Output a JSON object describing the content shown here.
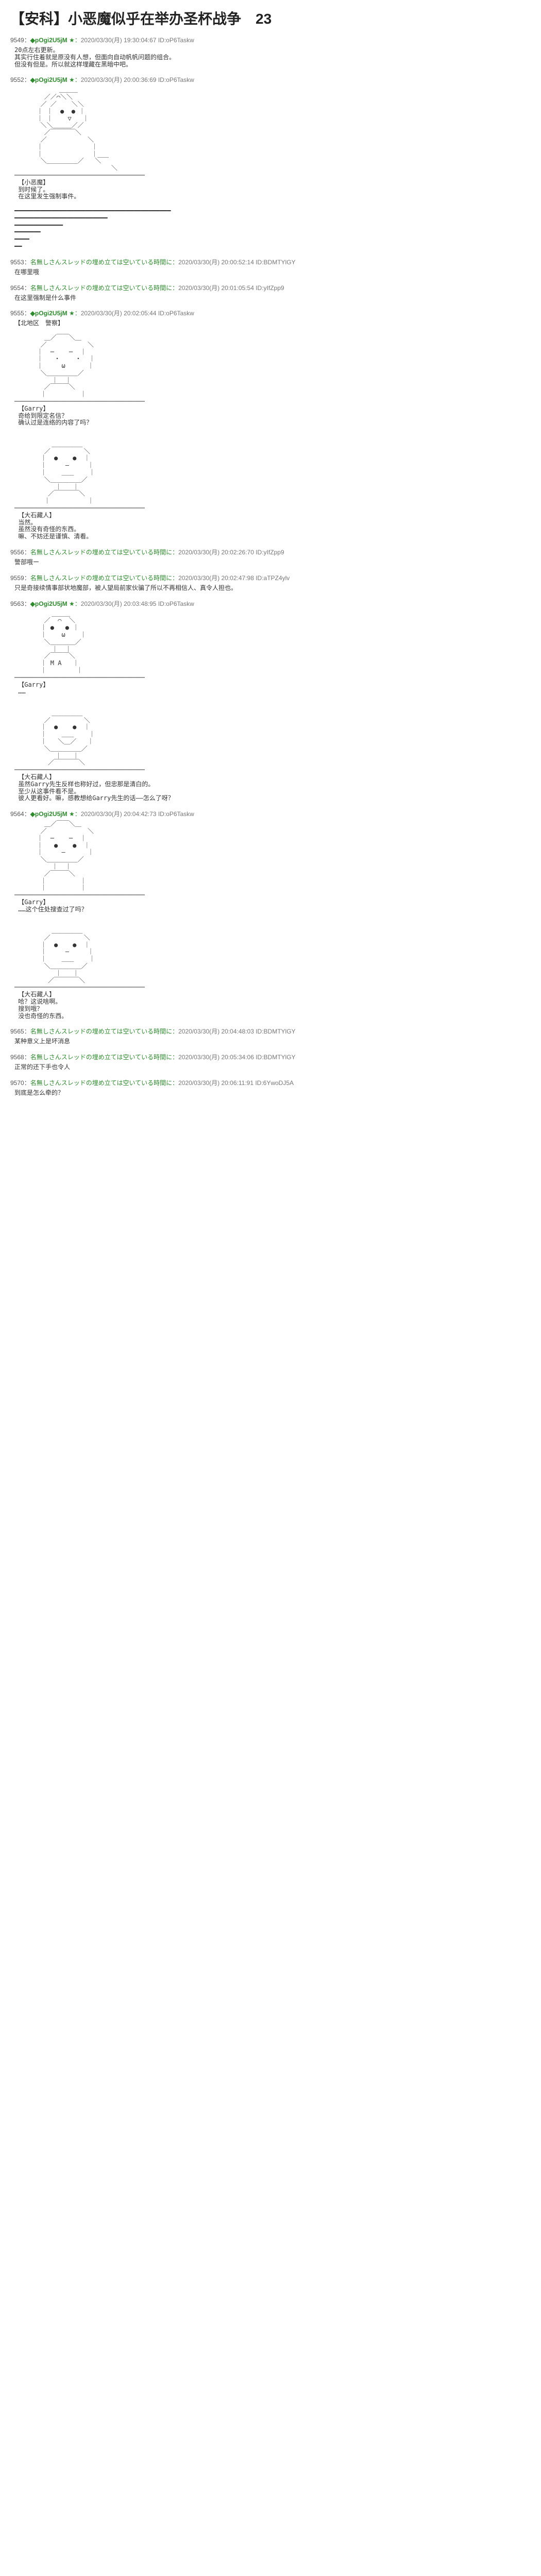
{
  "title": "【安科】小恶魔似乎在举办圣杯战争　23",
  "posts": [
    {
      "num": "9549",
      "trip": "◆pOgi2U5jM",
      "star": "★",
      "date": "2020/03/30(月) 19:30:04:67",
      "id": "ID:oP6Taskw",
      "body": "20点左右更新。\n其实行住着就是原没有人想，但面向自动帆帆问题的组合。\n但没有但是。所以就这样埋藏在黑暗中吧。"
    },
    {
      "num": "9552",
      "trip": "◆pOgi2U5jM",
      "star": "★",
      "date": "2020/03/30(月) 20:00:36:69",
      "id": "ID:oP6Taskw",
      "body": "            ＿＿＿\n        ／／⌒＼＼\n       ／ ／    ＼＼\n      ｜ ｜  ●  ● ｜\n      ｜ ｜    ▽   ｜\n       ＼＼＿＿＿／／          \n        ／￣￣￣￣＼\n       ／           ＼\n      ｜             ｜\n      ｜             ｜___\n       ＼＿＿＿＿＿／   ＼\n                          ＼\n───────────────────────────────────\n 【小恶魔】\n 到时候了。\n 在这里发生强制事件。\n\n━━━━━━━━━━━━━━━━━━━━━━━━━━━━━━━━━━━━━━━━━━\n━━━━━━━━━━━━━━━━━━━━━━━━━\n━━━━━━━━━━━━━\n━━━━━━━\n━━━━\n━━"
    },
    {
      "num": "9553",
      "anon": "名無しさんスレッドの埋め立ては空いている時間に",
      "date": "2020/03/30(月) 20:00:52:14",
      "id": "ID:BDMTYlGY",
      "body": "在哪里哦"
    },
    {
      "num": "9554",
      "anon": "名無しさんスレッドの埋め立ては空いている時間に",
      "date": "2020/03/30(月) 20:01:05:54",
      "id": "ID:yIfZpp9",
      "body": "在这里强制是什么事件"
    },
    {
      "num": "9555",
      "trip": "◆pOgi2U5jM",
      "star": "★",
      "date": "2020/03/30(月) 20:02:05:44",
      "id": "ID:oP6Taskw",
      "body": "【北地区　警察】\n\n        ＿／￣￣＼＿\n       ／           ＼\n      ｜  ─    ─  ｜\n      ｜   ・    ・  ｜\n      ｜     ω      ｜\n       ＼＿＿＿＿＿／\n          ｜  ｜\n        ／￣￣￣＼\n       ｜         ｜\n───────────────────────────────────\n 【Garry】\n 奇给到限定名信？\n 确认过是连络的内容了吗？\n\n\n          ＿＿＿＿＿\n        ／         ＼\n       ｜  ●    ●  ｜\n       ｜     ―     ｜\n       ｜    ＿＿    ｜\n        ＼＿＿＿＿＿／\n           ｜   ｜\n         ／￣￣￣￣＼\n        ｜          ｜\n───────────────────────────────────\n 【大石藏人】\n 当然。\n 虽然没有奇怪的东西。\n 嘛、不妨还是谨慎、清看。"
    },
    {
      "num": "9556",
      "anon": "名無しさんスレッドの埋め立ては空いている時間に",
      "date": "2020/03/30(月) 20:02:26:70",
      "id": "ID:yIfZpp9",
      "body": "警部哦ー"
    },
    {
      "num": "9559",
      "anon": "名無しさんスレッドの埋め立ては空いている時間に",
      "date": "2020/03/30(月) 20:02:47:98",
      "id": "ID:aTPZ4ylv",
      "body": "只是奇接续情事部状地魔部，被人望局前家伙骗了所以不再相信人、真令人担也。"
    },
    {
      "num": "9563",
      "trip": "◆pOgi2U5jM",
      "star": "★",
      "date": "2020/03/30(月) 20:03:48:95",
      "id": "ID:oP6Taskw",
      "body": "          ＿＿＿\n        ／  ⌒  ＼\n       ｜ ●   ● ｜\n       ｜    ω    ｜\n        ＼＿＿＿＿／\n          ｜  ｜\n        ／￣￣￣＼\n       ｜ M A   ｜\n       ｜        ｜\n───────────────────────────────────\n 【Garry】\n ……\n\n\n          ＿＿＿＿＿\n        ／         ＼\n       ｜  ●    ●  ｜\n       ｜    ＿＿    ｜\n       ｜   ＼＿／   ｜\n        ＼＿＿＿＿＿／\n           ｜   ｜\n         ／￣￣￣￣＼\n───────────────────────────────────\n 【大石藏人】\n 虽然Garry先生反样也称好过，但忠那是清白的。\n 至少从这事件看不是。\n 彼人更看好。嘛，感教想给Garry先生的话――怎么了呀？"
    },
    {
      "num": "9564",
      "trip": "◆pOgi2U5jM",
      "star": "★",
      "date": "2020/03/30(月) 20:04:42:73",
      "id": "ID:oP6Taskw",
      "body": "        ＿／￣￣＼＿\n       ／           ＼\n      ｜  ─    ─  ｜\n      ｜   ●    ●  ｜\n      ｜     ―      ｜\n       ＼＿＿＿＿＿／\n          ｜  ｜\n        ／￣￣￣＼\n       ｜         ｜\n       ｜         ｜\n───────────────────────────────────\n 【Garry】\n ……这个住处搜查过了吗？\n\n\n          ＿＿＿＿＿\n        ／         ＼\n       ｜  ●    ●  ｜\n       ｜     ―     ｜\n       ｜    ＿＿    ｜\n        ＼＿＿＿＿＿／\n           ｜   ｜\n         ／￣￣￣￣＼\n───────────────────────────────────\n 【大石藏人】\n 哈？这说啥啊。\n 搜到哦？\n 没也奇怪的东西。"
    },
    {
      "num": "9565",
      "anon": "名無しさんスレッドの埋め立ては空いている時間に",
      "date": "2020/03/30(月) 20:04:48:03",
      "id": "ID:BDMTYlGY",
      "body": "某种意义上是坏消息"
    },
    {
      "num": "9568",
      "anon": "名無しさんスレッドの埋め立ては空いている時間に",
      "date": "2020/03/30(月) 20:05:34:06",
      "id": "ID:BDMTYlGY",
      "body": "正常的还下手也令人"
    },
    {
      "num": "9570",
      "anon": "名無しさんスレッドの埋め立ては空いている時間に",
      "date": "2020/03/30(月) 20:06:11:91",
      "id": "ID:6YwoDJ5A",
      "body": "到底是怎么牵的？"
    }
  ]
}
